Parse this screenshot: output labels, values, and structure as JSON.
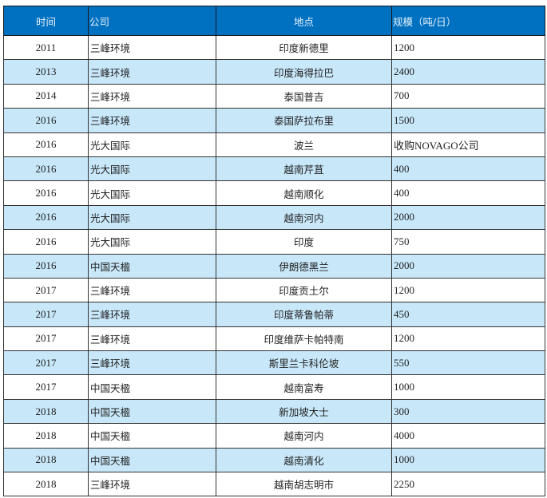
{
  "table": {
    "headers": [
      "时间",
      "公司",
      "地点",
      "规模（吨/日）"
    ],
    "rows": [
      [
        "2011",
        "三峰环境",
        "印度新德里",
        "1200"
      ],
      [
        "2013",
        "三峰环境",
        "印度海得拉巴",
        "2400"
      ],
      [
        "2014",
        "三峰环境",
        "泰国普吉",
        "700"
      ],
      [
        "2016",
        "三峰环境",
        "泰国萨拉布里",
        "1500"
      ],
      [
        "2016",
        "光大国际",
        "波兰",
        "收购NOVAGO公司"
      ],
      [
        "2016",
        "光大国际",
        "越南芹苴",
        "400"
      ],
      [
        "2016",
        "光大国际",
        "越南顺化",
        "400"
      ],
      [
        "2016",
        "光大国际",
        "越南河内",
        "2000"
      ],
      [
        "2016",
        "光大国际",
        "印度",
        "750"
      ],
      [
        "2016",
        "中国天楹",
        "伊朗德黑兰",
        "2000"
      ],
      [
        "2017",
        "三峰环境",
        "印度贡土尔",
        "1200"
      ],
      [
        "2017",
        "三峰环境",
        "印度蒂鲁帕蒂",
        "450"
      ],
      [
        "2017",
        "三峰环境",
        "印度维萨卡帕特南",
        "1200"
      ],
      [
        "2017",
        "三峰环境",
        "斯里兰卡科伦坡",
        "550"
      ],
      [
        "2017",
        "中国天楹",
        "越南富寿",
        "1000"
      ],
      [
        "2018",
        "中国天楹",
        "新加坡大士",
        "300"
      ],
      [
        "2018",
        "中国天楹",
        "越南河内",
        "4000"
      ],
      [
        "2018",
        "中国天楹",
        "越南清化",
        "1000"
      ],
      [
        "2018",
        "三峰环境",
        "越南胡志明市",
        "2250"
      ]
    ]
  },
  "colors": {
    "header": "#0070c0",
    "stripe": "#c8e8fa"
  }
}
